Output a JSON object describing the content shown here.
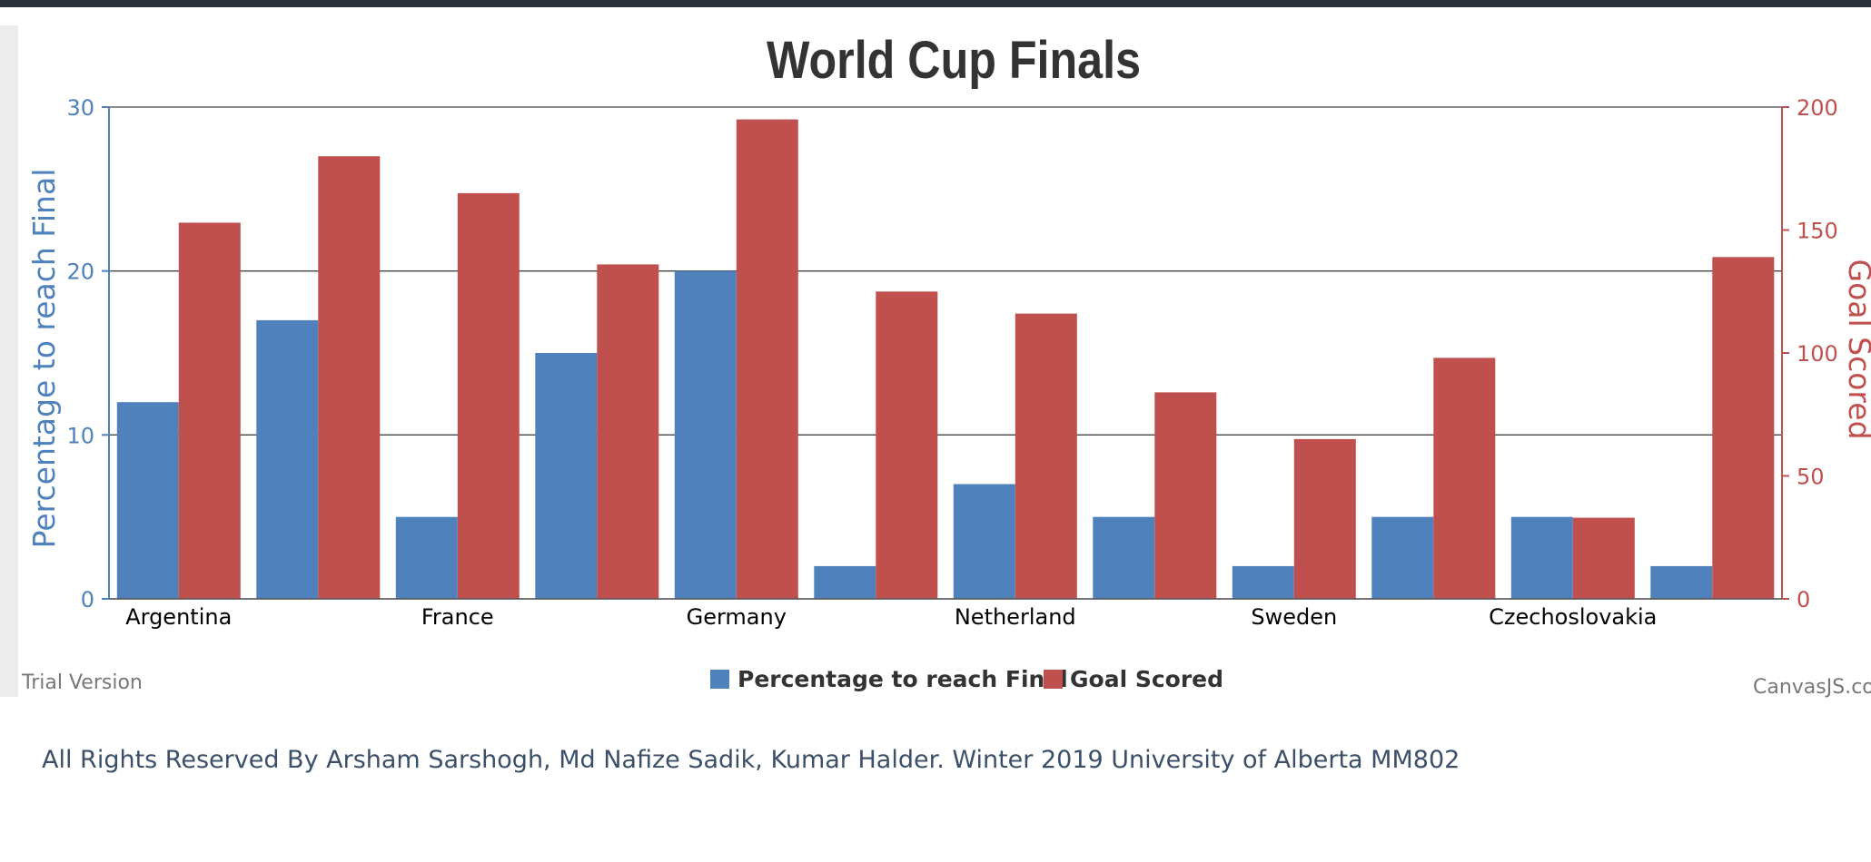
{
  "chart_data": {
    "type": "bar",
    "title": "World Cup Finals",
    "categories": [
      "Argentina",
      "",
      "France",
      "",
      "Germany",
      "",
      "Netherland",
      "",
      "Sweden",
      "",
      "Czechoslovakia",
      ""
    ],
    "series": [
      {
        "name": "Percentage to reach Final",
        "axis": "left",
        "values": [
          12,
          17,
          5,
          15,
          20,
          2,
          7,
          5,
          2,
          5,
          5,
          2
        ]
      },
      {
        "name": "Goal Scored",
        "axis": "right",
        "values": [
          153,
          180,
          165,
          136,
          195,
          125,
          116,
          84,
          65,
          98,
          33,
          139
        ]
      }
    ],
    "ylabel": "Percentage to reach Final",
    "y2label": "Goal Scored",
    "ylim": [
      0,
      30
    ],
    "y2lim": [
      0,
      200
    ],
    "yticks": [
      "0",
      "10",
      "20",
      "30"
    ],
    "y2ticks": [
      "0",
      "50",
      "100",
      "150",
      "200"
    ],
    "grid": true,
    "legend_position": "bottom-center"
  },
  "colors": {
    "series1": "#4f81bc",
    "series2": "#c0504e",
    "title": "#333333",
    "grid": "#555555"
  },
  "watermark_left": "Trial Version",
  "watermark_right": "CanvasJS.com",
  "footer": "All Rights Reserved By Arsham Sarshogh, Md Nafize Sadik, Kumar Halder. Winter 2019 University of Alberta MM802"
}
